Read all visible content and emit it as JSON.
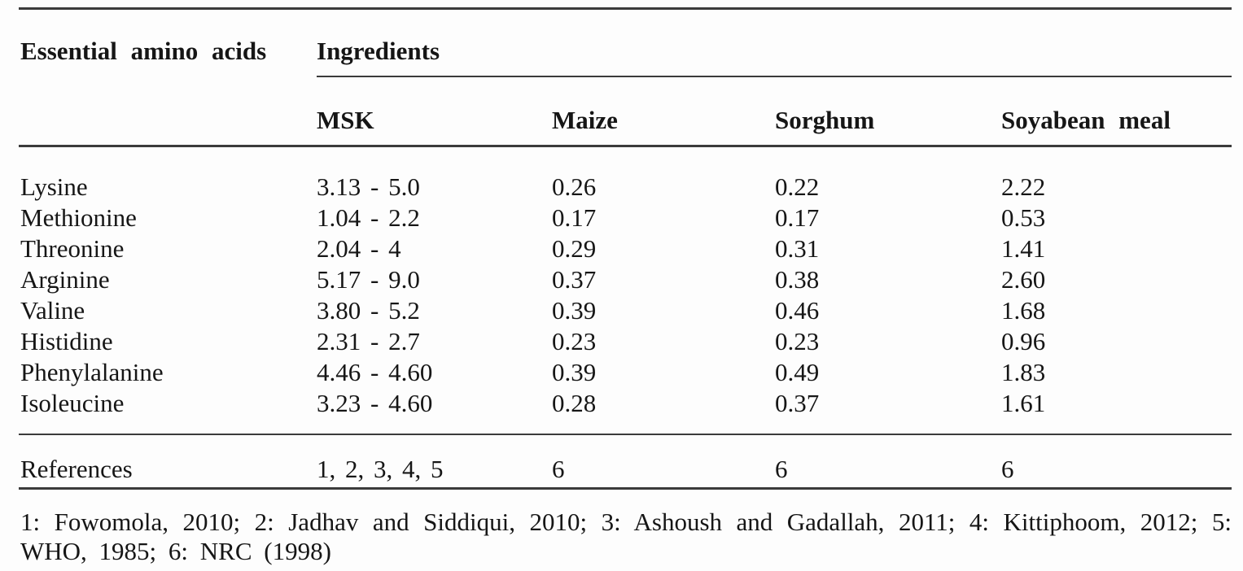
{
  "table": {
    "row_header_label": "Essential amino acids",
    "group_header_label": "Ingredients",
    "columns": [
      "MSK",
      "Maize",
      "Sorghum",
      "Soyabean meal"
    ],
    "rows": [
      {
        "name": "Lysine",
        "values": [
          "3.13 - 5.0",
          "0.26",
          "0.22",
          "2.22"
        ]
      },
      {
        "name": "Methionine",
        "values": [
          "1.04 - 2.2",
          "0.17",
          "0.17",
          "0.53"
        ]
      },
      {
        "name": "Threonine",
        "values": [
          "2.04 - 4",
          "0.29",
          "0.31",
          "1.41"
        ]
      },
      {
        "name": "Arginine",
        "values": [
          "5.17 - 9.0",
          "0.37",
          "0.38",
          "2.60"
        ]
      },
      {
        "name": "Valine",
        "values": [
          "3.80 - 5.2",
          "0.39",
          "0.46",
          "1.68"
        ]
      },
      {
        "name": "Histidine",
        "values": [
          "2.31 - 2.7",
          "0.23",
          "0.23",
          "0.96"
        ]
      },
      {
        "name": "Phenylalanine",
        "values": [
          "4.46 - 4.60",
          "0.39",
          "0.49",
          "1.83"
        ]
      },
      {
        "name": "Isoleucine",
        "values": [
          "3.23 - 4.60",
          "0.28",
          "0.37",
          "1.61"
        ]
      }
    ],
    "references": {
      "label": "References",
      "values": [
        "1, 2, 3, 4, 5",
        "6",
        "6",
        "6"
      ]
    }
  },
  "footnote": {
    "line1": "1: Fowomola, 2010; 2: Jadhav and Siddiqui, 2010; 3: Ashoush and Gadallah, 2011; 4: Kittiphoom, 2012; 5:",
    "line2": "WHO, 1985; 6: NRC (1998)"
  },
  "colors": {
    "text": "#161616",
    "rule": "#3b3b3b",
    "background": "#fdfdfd"
  }
}
